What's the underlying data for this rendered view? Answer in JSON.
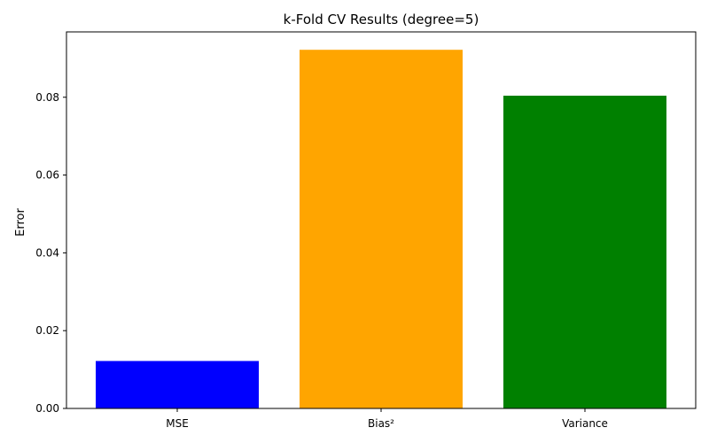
{
  "chart_data": {
    "type": "bar",
    "title": "k-Fold CV Results (degree=5)",
    "xlabel": "",
    "ylabel": "Error",
    "categories": [
      "MSE",
      "Bias²",
      "Variance"
    ],
    "values": [
      0.0122,
      0.0922,
      0.0804
    ],
    "colors": [
      "#0000ff",
      "#ffa500",
      "#008000"
    ],
    "ylim": [
      0,
      0.0968
    ],
    "yticks": [
      0.0,
      0.02,
      0.04,
      0.06,
      0.08
    ],
    "ytick_labels": [
      "0.00",
      "0.02",
      "0.04",
      "0.06",
      "0.08"
    ],
    "grid": false,
    "legend": "none"
  }
}
